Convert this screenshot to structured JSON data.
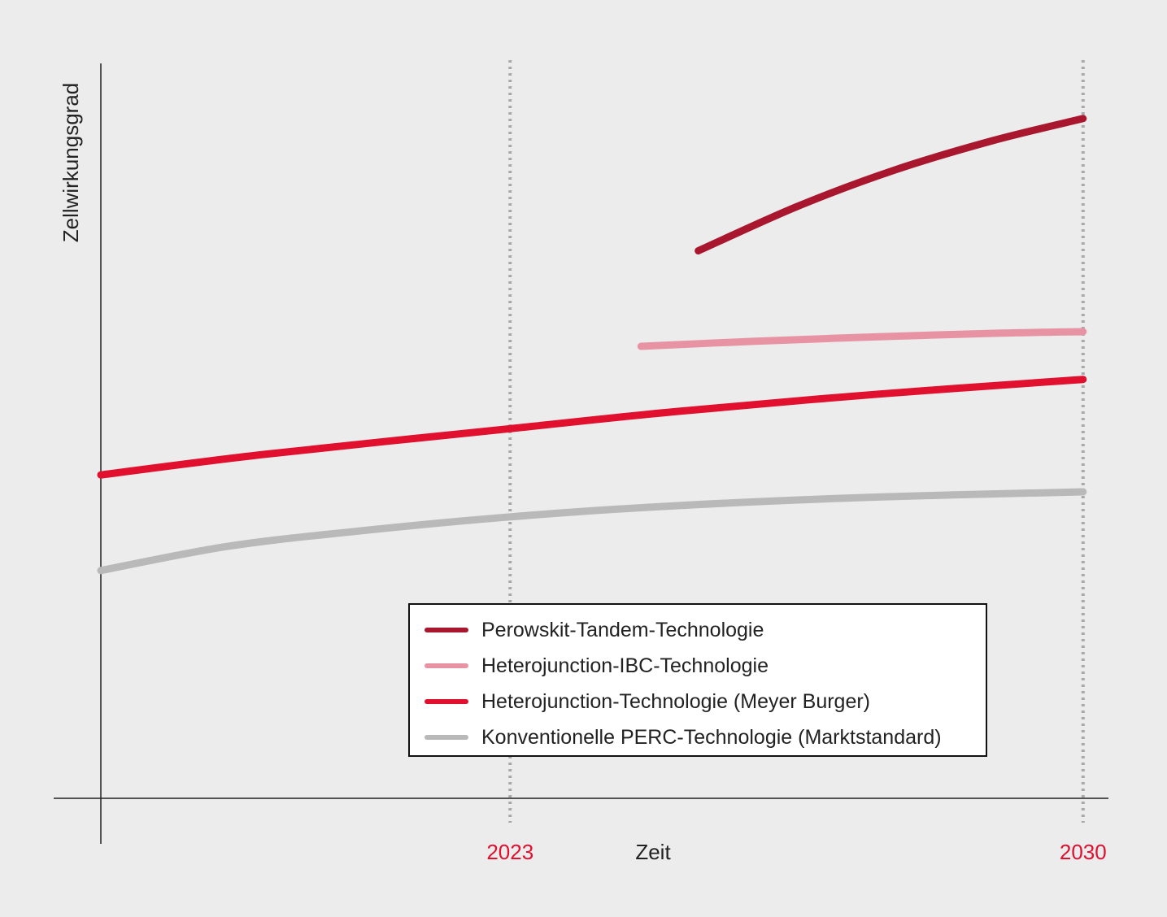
{
  "chart_data": {
    "type": "line",
    "title": "",
    "xlabel": "Zeit",
    "ylabel": "Zellwirkungsgrad",
    "x_ticks": [
      {
        "label": "2023",
        "value": 2023
      },
      {
        "label": "2030",
        "value": 2030
      }
    ],
    "xlim": [
      2018,
      2030.3
    ],
    "ylim": [
      0,
      100
    ],
    "grid": "vertical dotted at tick years",
    "legend_position": "bottom-center",
    "series": [
      {
        "name": "Perowskit-Tandem-Technologie",
        "color": "#a8172d",
        "x": [
          2025.3,
          2026.5,
          2027.7,
          2028.9,
          2030.0
        ],
        "y": [
          74.5,
          80.5,
          85.5,
          89.5,
          92.5
        ]
      },
      {
        "name": "Heterojunction-IBC-Technologie",
        "color": "#e893a4",
        "x": [
          2024.6,
          2026.0,
          2027.5,
          2029.0,
          2030.0
        ],
        "y": [
          61.5,
          62.2,
          62.8,
          63.3,
          63.5
        ]
      },
      {
        "name": "Heterojunction-Technologie (Meyer Burger)",
        "color": "#e0102e",
        "x": [
          2018.0,
          2020.0,
          2023.0,
          2025.0,
          2027.5,
          2030.0
        ],
        "y": [
          44.0,
          46.8,
          50.3,
          52.6,
          55.0,
          57.0
        ]
      },
      {
        "name": "Konventionelle PERC-Technologie (Marktstandard)",
        "color": "#b9b9b9",
        "x": [
          2018.0,
          2019.5,
          2021.0,
          2023.0,
          2025.0,
          2027.5,
          2030.0
        ],
        "y": [
          31.0,
          34.2,
          36.2,
          38.3,
          39.8,
          41.0,
          41.7
        ]
      }
    ]
  }
}
